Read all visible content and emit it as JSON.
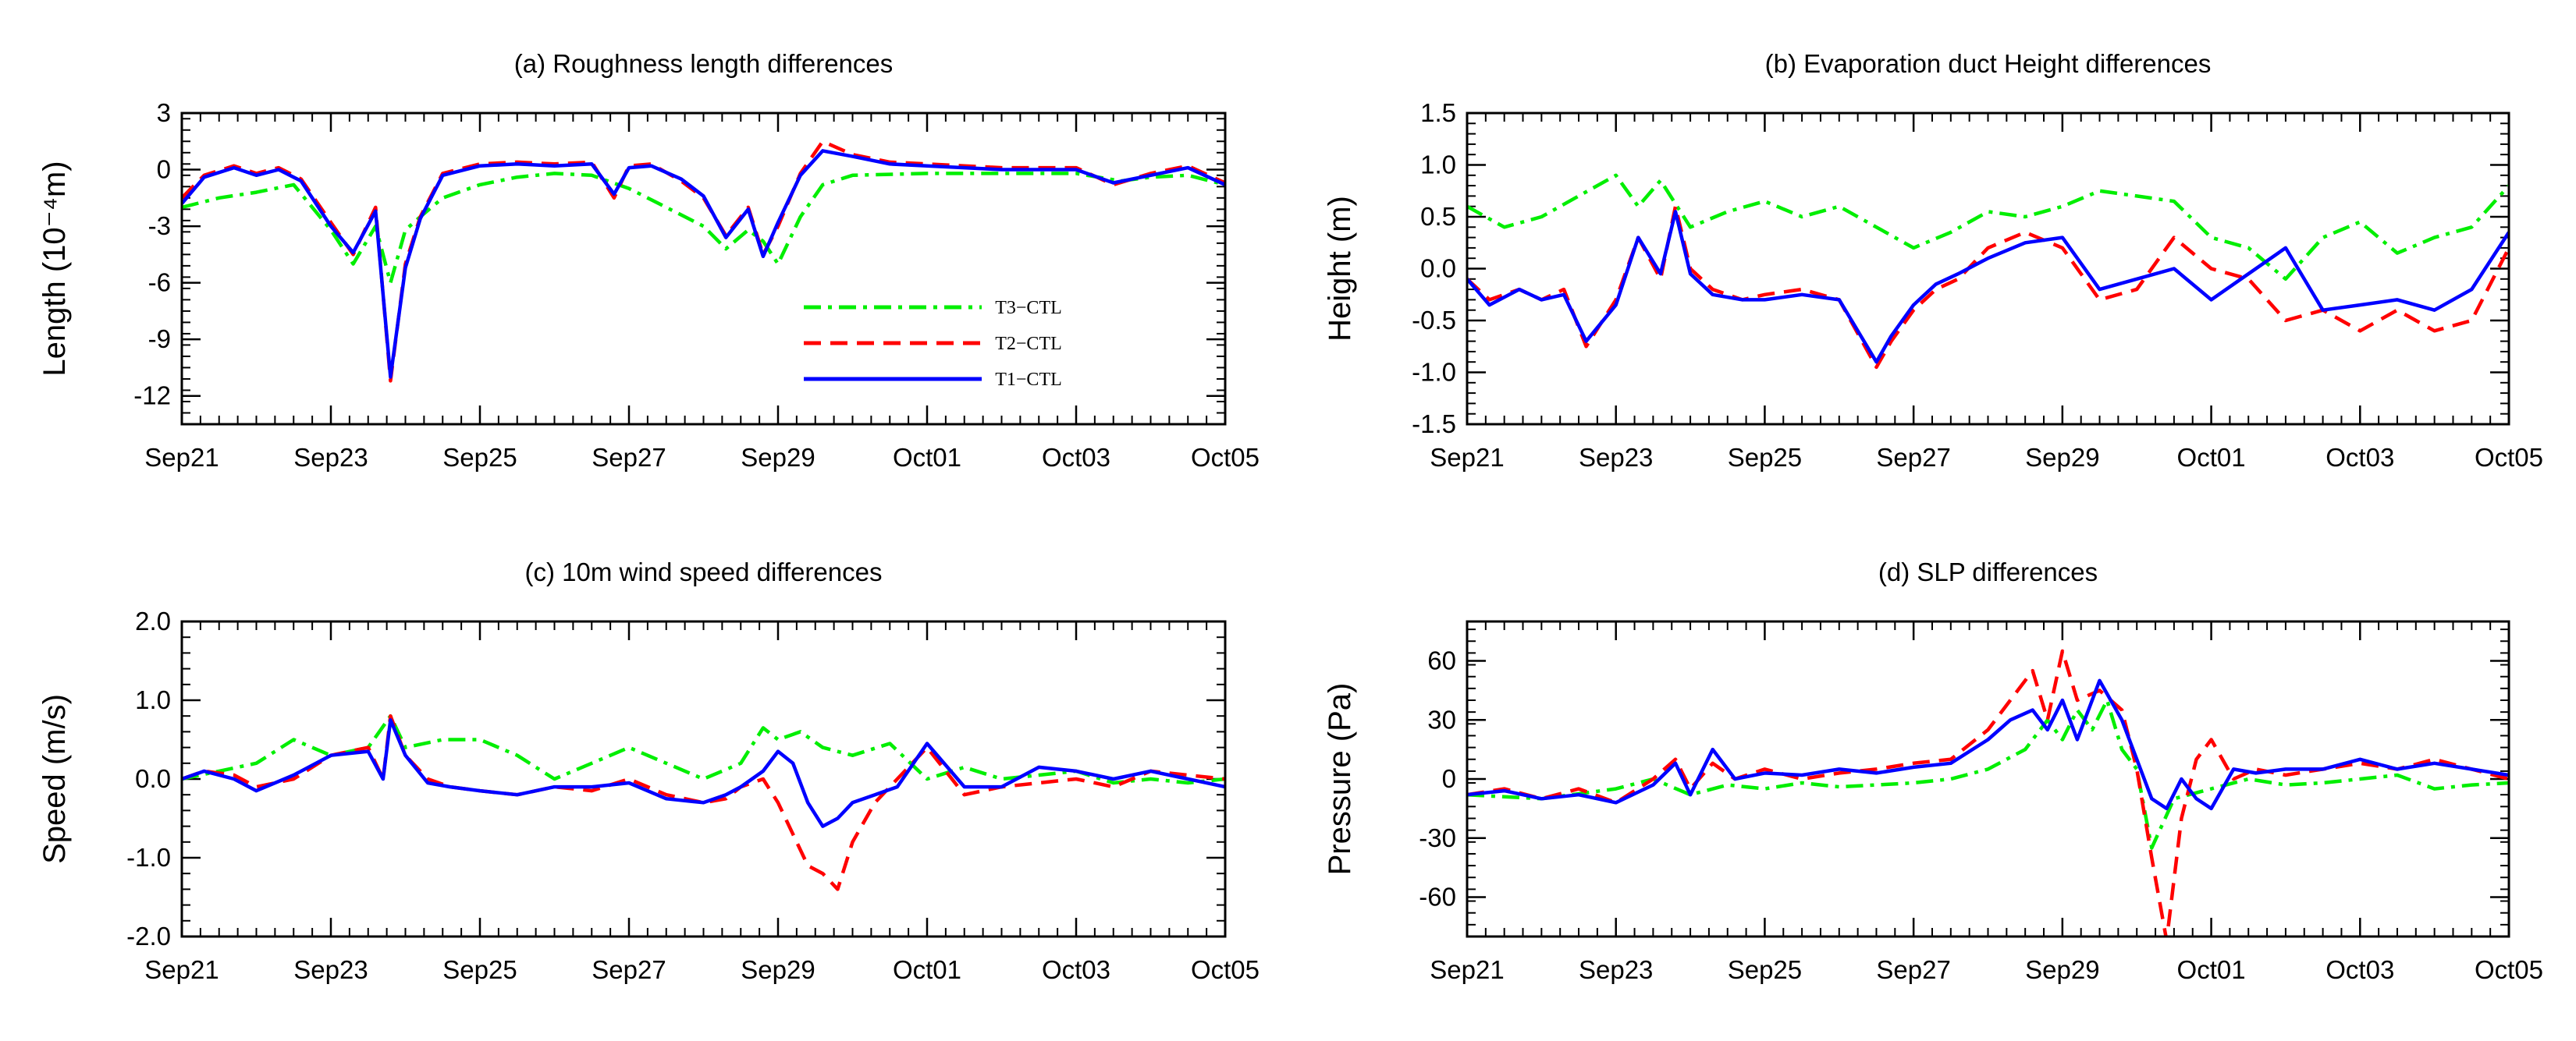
{
  "figure": {
    "description_free": true
  },
  "legend": {
    "entries": [
      {
        "label": "T3−CTL",
        "color": "#00ee00",
        "dash": "dashdot"
      },
      {
        "label": "T2−CTL",
        "color": "#ff0000",
        "dash": "dash"
      },
      {
        "label": "T1−CTL",
        "color": "#0000ff",
        "dash": "solid"
      }
    ]
  },
  "chart_data": [
    {
      "type": "line",
      "title": "(a) Roughness length differences",
      "ylabel": "Length (10⁻⁴m)",
      "xlabel": "",
      "xlim": [
        0,
        14
      ],
      "ylim": [
        -13.5,
        3
      ],
      "yticks": [
        3,
        0,
        -3,
        -6,
        -9,
        -12
      ],
      "ytick_labels": [
        "3",
        "0",
        "-3",
        "-6",
        "-9",
        "-12"
      ],
      "xticks": [
        0,
        2,
        4,
        6,
        8,
        10,
        12,
        14
      ],
      "xtick_labels": [
        "Sep21",
        "Sep23",
        "Sep25",
        "Sep27",
        "Sep29",
        "Oct01",
        "Oct03",
        "Oct05"
      ],
      "series": [
        {
          "name": "T3−CTL",
          "color": "#00ee00",
          "dash": "dashdot",
          "x": [
            0,
            0.5,
            1,
            1.5,
            2,
            2.3,
            2.6,
            2.8,
            3.0,
            3.2,
            3.5,
            4,
            4.5,
            5,
            5.5,
            6,
            6.5,
            7,
            7.3,
            7.6,
            7.8,
            8.0,
            8.3,
            8.6,
            9,
            10,
            11,
            12,
            12.6,
            13,
            13.5,
            14
          ],
          "y": [
            -2,
            -1.5,
            -1.2,
            -0.8,
            -3.2,
            -5.0,
            -3.0,
            -6.0,
            -3.2,
            -2.5,
            -1.5,
            -0.8,
            -0.4,
            -0.2,
            -0.3,
            -1.0,
            -2.0,
            -3.0,
            -4.2,
            -3.2,
            -3.8,
            -5.0,
            -2.5,
            -0.8,
            -0.3,
            -0.2,
            -0.2,
            -0.2,
            -0.6,
            -0.4,
            -0.3,
            -0.8
          ]
        },
        {
          "name": "T2−CTL",
          "color": "#ff0000",
          "dash": "dash",
          "x": [
            0,
            0.3,
            0.7,
            1,
            1.3,
            1.6,
            2,
            2.3,
            2.6,
            2.8,
            3.0,
            3.2,
            3.5,
            4,
            4.5,
            5,
            5.5,
            5.8,
            6.0,
            6.3,
            6.7,
            7,
            7.3,
            7.6,
            7.8,
            8.0,
            8.3,
            8.6,
            9,
            9.5,
            10,
            11,
            12,
            12.5,
            13,
            13.5,
            14
          ],
          "y": [
            -1.5,
            -0.3,
            0.2,
            -0.2,
            0.1,
            -0.5,
            -2.8,
            -4.5,
            -2.0,
            -11.2,
            -5.0,
            -2.5,
            -0.2,
            0.3,
            0.4,
            0.3,
            0.4,
            -1.5,
            0.2,
            0.3,
            -0.6,
            -1.5,
            -3.5,
            -2.0,
            -4.5,
            -3.0,
            -0.2,
            1.5,
            0.8,
            0.4,
            0.3,
            0.1,
            0.1,
            -0.8,
            -0.2,
            0.2,
            -0.7
          ]
        },
        {
          "name": "T1−CTL",
          "color": "#0000ff",
          "dash": "solid",
          "x": [
            0,
            0.3,
            0.7,
            1,
            1.3,
            1.6,
            2,
            2.3,
            2.6,
            2.8,
            3.0,
            3.2,
            3.5,
            4,
            4.5,
            5,
            5.5,
            5.8,
            6.0,
            6.3,
            6.7,
            7,
            7.3,
            7.6,
            7.8,
            8.0,
            8.3,
            8.6,
            9,
            9.5,
            10,
            11,
            12,
            12.5,
            13,
            13.5,
            14
          ],
          "y": [
            -1.8,
            -0.4,
            0.1,
            -0.3,
            0.0,
            -0.6,
            -3.0,
            -4.4,
            -2.2,
            -11.0,
            -5.2,
            -2.6,
            -0.3,
            0.2,
            0.3,
            0.2,
            0.3,
            -1.3,
            0.1,
            0.2,
            -0.5,
            -1.4,
            -3.6,
            -2.1,
            -4.6,
            -2.8,
            -0.3,
            1.0,
            0.7,
            0.3,
            0.2,
            0.0,
            0.0,
            -0.7,
            -0.3,
            0.1,
            -0.8
          ]
        }
      ]
    },
    {
      "type": "line",
      "title": "(b) Evaporation duct Height differences",
      "ylabel": "Height (m)",
      "xlabel": "",
      "xlim": [
        0,
        14
      ],
      "ylim": [
        -1.5,
        1.5
      ],
      "yticks": [
        1.5,
        1.0,
        0.5,
        0.0,
        -0.5,
        -1.0,
        -1.5
      ],
      "ytick_labels": [
        "1.5",
        "1.0",
        "0.5",
        "0.0",
        "-0.5",
        "-1.0",
        "-1.5"
      ],
      "xticks": [
        0,
        2,
        4,
        6,
        8,
        10,
        12,
        14
      ],
      "xtick_labels": [
        "Sep21",
        "Sep23",
        "Sep25",
        "Sep27",
        "Sep29",
        "Oct01",
        "Oct03",
        "Oct05"
      ],
      "series": [
        {
          "name": "T3−CTL",
          "color": "#00ee00",
          "dash": "dashdot",
          "x": [
            0,
            0.5,
            1,
            1.5,
            2,
            2.3,
            2.6,
            3.0,
            3.5,
            4,
            4.5,
            5,
            5.5,
            6,
            6.5,
            7,
            7.5,
            8,
            8.5,
            9,
            9.5,
            10,
            10.5,
            11,
            11.5,
            12,
            12.5,
            13,
            13.5,
            14
          ],
          "y": [
            0.6,
            0.4,
            0.5,
            0.7,
            0.9,
            0.6,
            0.85,
            0.4,
            0.55,
            0.65,
            0.5,
            0.6,
            0.4,
            0.2,
            0.35,
            0.55,
            0.5,
            0.6,
            0.75,
            0.7,
            0.65,
            0.3,
            0.2,
            -0.1,
            0.3,
            0.45,
            0.15,
            0.3,
            0.4,
            0.8
          ]
        },
        {
          "name": "T2−CTL",
          "color": "#ff0000",
          "dash": "dash",
          "x": [
            0,
            0.3,
            0.7,
            1,
            1.3,
            1.6,
            2,
            2.3,
            2.6,
            2.8,
            3.0,
            3.3,
            3.7,
            4,
            4.5,
            5,
            5.5,
            5.7,
            6.0,
            6.3,
            6.6,
            7,
            7.5,
            8,
            8.5,
            9,
            9.5,
            10,
            10.5,
            11,
            11.5,
            12,
            12.5,
            13,
            13.5,
            14
          ],
          "y": [
            -0.1,
            -0.3,
            -0.2,
            -0.3,
            -0.2,
            -0.75,
            -0.3,
            0.3,
            -0.1,
            0.6,
            0.0,
            -0.2,
            -0.3,
            -0.25,
            -0.2,
            -0.3,
            -0.95,
            -0.7,
            -0.4,
            -0.2,
            -0.1,
            0.2,
            0.35,
            0.2,
            -0.3,
            -0.2,
            0.3,
            0.0,
            -0.1,
            -0.5,
            -0.4,
            -0.6,
            -0.4,
            -0.6,
            -0.5,
            0.2
          ]
        },
        {
          "name": "T1−CTL",
          "color": "#0000ff",
          "dash": "solid",
          "x": [
            0,
            0.3,
            0.7,
            1,
            1.3,
            1.6,
            2,
            2.3,
            2.6,
            2.8,
            3.0,
            3.3,
            3.7,
            4,
            4.5,
            5,
            5.5,
            5.7,
            6.0,
            6.3,
            6.6,
            7,
            7.5,
            8,
            8.5,
            9,
            9.5,
            10,
            10.5,
            11,
            11.5,
            12,
            12.5,
            13,
            13.5,
            14
          ],
          "y": [
            -0.1,
            -0.35,
            -0.2,
            -0.3,
            -0.25,
            -0.7,
            -0.35,
            0.3,
            -0.05,
            0.55,
            -0.05,
            -0.25,
            -0.3,
            -0.3,
            -0.25,
            -0.3,
            -0.9,
            -0.65,
            -0.35,
            -0.15,
            -0.05,
            0.1,
            0.25,
            0.3,
            -0.2,
            -0.1,
            0.0,
            -0.3,
            -0.05,
            0.2,
            -0.4,
            -0.35,
            -0.3,
            -0.4,
            -0.2,
            0.35
          ]
        }
      ]
    },
    {
      "type": "line",
      "title": "(c) 10m wind speed differences",
      "ylabel": "Speed (m/s)",
      "xlabel": "",
      "xlim": [
        0,
        14
      ],
      "ylim": [
        -2.0,
        2.0
      ],
      "yticks": [
        2.0,
        1.0,
        0.0,
        -1.0,
        -2.0
      ],
      "ytick_labels": [
        "2.0",
        "1.0",
        "0.0",
        "-1.0",
        "-2.0"
      ],
      "xticks": [
        0,
        2,
        4,
        6,
        8,
        10,
        12,
        14
      ],
      "xtick_labels": [
        "Sep21",
        "Sep23",
        "Sep25",
        "Sep27",
        "Sep29",
        "Oct01",
        "Oct03",
        "Oct05"
      ],
      "series": [
        {
          "name": "T3−CTL",
          "color": "#00ee00",
          "dash": "dashdot",
          "x": [
            0,
            0.5,
            1,
            1.5,
            2,
            2.5,
            2.8,
            3.0,
            3.5,
            4,
            4.5,
            5,
            5.5,
            6,
            6.5,
            7,
            7.5,
            7.8,
            8.0,
            8.3,
            8.6,
            9,
            9.5,
            10,
            10.5,
            11,
            11.5,
            12,
            12.5,
            13,
            13.5,
            14
          ],
          "y": [
            0.0,
            0.1,
            0.2,
            0.5,
            0.3,
            0.4,
            0.8,
            0.4,
            0.5,
            0.5,
            0.3,
            0.0,
            0.2,
            0.4,
            0.2,
            0.0,
            0.2,
            0.65,
            0.5,
            0.6,
            0.4,
            0.3,
            0.45,
            0.0,
            0.15,
            0.0,
            0.05,
            0.1,
            -0.05,
            0.0,
            -0.05,
            0.0
          ]
        },
        {
          "name": "T2−CTL",
          "color": "#ff0000",
          "dash": "dash",
          "x": [
            0,
            0.3,
            0.7,
            1,
            1.5,
            2,
            2.5,
            2.7,
            2.8,
            3.0,
            3.3,
            3.6,
            4,
            4.5,
            5,
            5.5,
            6,
            6.5,
            7,
            7.3,
            7.5,
            7.8,
            8.0,
            8.2,
            8.4,
            8.6,
            8.8,
            9.0,
            9.3,
            9.6,
            10,
            10.5,
            11,
            11.5,
            12,
            12.5,
            13,
            13.5,
            14
          ],
          "y": [
            0.0,
            0.1,
            0.05,
            -0.1,
            0.0,
            0.3,
            0.4,
            0.0,
            0.8,
            0.3,
            0.0,
            -0.1,
            -0.15,
            -0.2,
            -0.1,
            -0.15,
            0.0,
            -0.2,
            -0.3,
            -0.25,
            -0.1,
            0.0,
            -0.3,
            -0.7,
            -1.1,
            -1.2,
            -1.4,
            -0.8,
            -0.3,
            0.0,
            0.4,
            -0.2,
            -0.1,
            -0.05,
            0.0,
            -0.1,
            0.1,
            0.05,
            0.0
          ]
        },
        {
          "name": "T1−CTL",
          "color": "#0000ff",
          "dash": "solid",
          "x": [
            0,
            0.3,
            0.7,
            1,
            1.5,
            2,
            2.5,
            2.7,
            2.8,
            3.0,
            3.3,
            3.6,
            4,
            4.5,
            5,
            5.5,
            6,
            6.5,
            7,
            7.3,
            7.5,
            7.8,
            8.0,
            8.2,
            8.4,
            8.6,
            8.8,
            9.0,
            9.3,
            9.6,
            10,
            10.5,
            11,
            11.5,
            12,
            12.5,
            13,
            13.5,
            14
          ],
          "y": [
            0.0,
            0.1,
            0.0,
            -0.15,
            0.05,
            0.3,
            0.35,
            0.0,
            0.75,
            0.3,
            -0.05,
            -0.1,
            -0.15,
            -0.2,
            -0.1,
            -0.1,
            -0.05,
            -0.25,
            -0.3,
            -0.2,
            -0.1,
            0.1,
            0.35,
            0.2,
            -0.3,
            -0.6,
            -0.5,
            -0.3,
            -0.2,
            -0.1,
            0.45,
            -0.1,
            -0.1,
            0.15,
            0.1,
            0.0,
            0.1,
            0.0,
            -0.1
          ]
        }
      ]
    },
    {
      "type": "line",
      "title": "(d) SLP differences",
      "ylabel": "Pressure (Pa)",
      "xlabel": "",
      "xlim": [
        0,
        14
      ],
      "ylim": [
        -80,
        80
      ],
      "yticks": [
        60,
        30,
        0,
        -30,
        -60
      ],
      "ytick_labels": [
        "60",
        "30",
        "0",
        "-30",
        "-60"
      ],
      "xticks": [
        0,
        2,
        4,
        6,
        8,
        10,
        12,
        14
      ],
      "xtick_labels": [
        "Sep21",
        "Sep23",
        "Sep25",
        "Sep27",
        "Sep29",
        "Oct01",
        "Oct03",
        "Oct05"
      ],
      "series": [
        {
          "name": "T3−CTL",
          "color": "#00ee00",
          "dash": "dashdot",
          "x": [
            0,
            1,
            2,
            2.5,
            3,
            3.5,
            4,
            4.5,
            5,
            5.5,
            6,
            6.5,
            7,
            7.5,
            7.8,
            8.0,
            8.2,
            8.4,
            8.6,
            8.8,
            9.0,
            9.2,
            9.5,
            10,
            10.5,
            11,
            11.5,
            12,
            12.5,
            13,
            13.5,
            14
          ],
          "y": [
            -8,
            -10,
            -5,
            0,
            -8,
            -3,
            -5,
            -2,
            -4,
            -3,
            -2,
            0,
            5,
            15,
            30,
            20,
            35,
            25,
            40,
            15,
            5,
            -35,
            -10,
            -5,
            0,
            -3,
            -2,
            0,
            2,
            -5,
            -3,
            -2
          ]
        },
        {
          "name": "T2−CTL",
          "color": "#ff0000",
          "dash": "dash",
          "x": [
            0,
            0.5,
            1,
            1.5,
            2,
            2.5,
            2.8,
            3.0,
            3.3,
            3.6,
            4,
            4.5,
            5,
            5.5,
            6,
            6.5,
            7,
            7.3,
            7.6,
            7.8,
            8.0,
            8.2,
            8.5,
            8.8,
            9.0,
            9.2,
            9.4,
            9.6,
            9.8,
            10.0,
            10.3,
            10.6,
            11,
            11.5,
            12,
            12.5,
            13,
            13.5,
            14
          ],
          "y": [
            -8,
            -5,
            -10,
            -5,
            -12,
            0,
            10,
            -5,
            8,
            0,
            5,
            0,
            3,
            5,
            8,
            10,
            25,
            40,
            55,
            30,
            65,
            40,
            45,
            35,
            5,
            -40,
            -82,
            -20,
            10,
            20,
            0,
            5,
            2,
            5,
            8,
            5,
            10,
            5,
            0
          ]
        },
        {
          "name": "T1−CTL",
          "color": "#0000ff",
          "dash": "solid",
          "x": [
            0,
            0.5,
            1,
            1.5,
            2,
            2.5,
            2.8,
            3.0,
            3.3,
            3.6,
            4,
            4.5,
            5,
            5.5,
            6,
            6.5,
            7,
            7.3,
            7.6,
            7.8,
            8.0,
            8.2,
            8.5,
            8.8,
            9.0,
            9.2,
            9.4,
            9.6,
            9.8,
            10.0,
            10.3,
            10.6,
            11,
            11.5,
            12,
            12.5,
            13,
            13.5,
            14
          ],
          "y": [
            -8,
            -6,
            -10,
            -8,
            -12,
            -3,
            8,
            -8,
            15,
            0,
            3,
            2,
            5,
            3,
            6,
            8,
            20,
            30,
            35,
            25,
            40,
            20,
            50,
            30,
            10,
            -10,
            -15,
            0,
            -10,
            -15,
            5,
            3,
            5,
            5,
            10,
            5,
            8,
            5,
            2
          ]
        }
      ]
    }
  ]
}
